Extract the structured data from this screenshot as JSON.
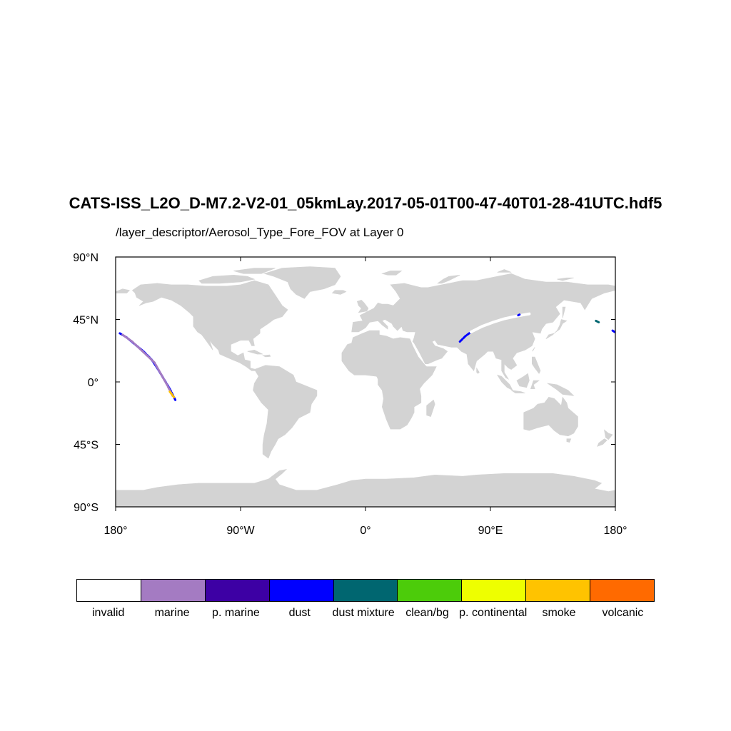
{
  "title": "CATS-ISS_L2O_D-M7.2-V2-01_05kmLay.2017-05-01T00-47-40T01-28-41UTC.hdf5",
  "subtitle": "/layer_descriptor/Aerosol_Type_Fore_FOV at Layer 0",
  "map": {
    "projection": "cylindrical-equidistant",
    "lon_range": [
      -180,
      180
    ],
    "lat_range": [
      -90,
      90
    ],
    "land_color": "#d3d3d3",
    "ocean_color": "#ffffff",
    "lat_ticks": [
      {
        "value": 90,
        "label": "90°N"
      },
      {
        "value": 45,
        "label": "45°N"
      },
      {
        "value": 0,
        "label": "0°"
      },
      {
        "value": -45,
        "label": "45°S"
      },
      {
        "value": -90,
        "label": "90°S"
      }
    ],
    "lon_ticks": [
      {
        "value": -180,
        "label": "180°"
      },
      {
        "value": -90,
        "label": "90°W"
      },
      {
        "value": 0,
        "label": "0°"
      },
      {
        "value": 90,
        "label": "90°E"
      },
      {
        "value": 180,
        "label": "180°"
      }
    ]
  },
  "legend": {
    "categories": [
      {
        "label": "invalid",
        "color": "#ffffff"
      },
      {
        "label": "marine",
        "color": "#a47bc2"
      },
      {
        "label": "p. marine",
        "color": "#3d00a4"
      },
      {
        "label": "dust",
        "color": "#0000ff"
      },
      {
        "label": "dust mixture",
        "color": "#006670"
      },
      {
        "label": "clean/bg",
        "color": "#4ccc0a"
      },
      {
        "label": "p. continental",
        "color": "#eeff00"
      },
      {
        "label": "smoke",
        "color": "#ffc300"
      },
      {
        "label": "volcanic",
        "color": "#ff6a00"
      }
    ]
  },
  "tracks": [
    {
      "category": "dust",
      "points": [
        [
          -177,
          35
        ],
        [
          -172,
          32
        ],
        [
          -166,
          27
        ],
        [
          -160,
          22
        ],
        [
          -154,
          16
        ],
        [
          -150,
          10
        ],
        [
          -147,
          5
        ],
        [
          -144,
          0
        ],
        [
          -141,
          -5
        ],
        [
          -139,
          -9
        ],
        [
          -137,
          -13
        ]
      ]
    },
    {
      "category": "marine",
      "points": [
        [
          -175,
          34
        ],
        [
          -168,
          29
        ],
        [
          -152,
          14
        ],
        [
          -143,
          -2
        ],
        [
          -139,
          -10
        ]
      ]
    },
    {
      "category": "smoke",
      "points": [
        [
          -141,
          -7
        ],
        [
          -138,
          -11
        ]
      ]
    },
    {
      "category": "dust",
      "points": [
        [
          68,
          29
        ],
        [
          70,
          31
        ],
        [
          72,
          33
        ],
        [
          74,
          34.5
        ],
        [
          76,
          36
        ]
      ]
    },
    {
      "category": "invalid",
      "points": [
        [
          76,
          36
        ],
        [
          84,
          40
        ],
        [
          92,
          43
        ],
        [
          100,
          45.5
        ],
        [
          107,
          47
        ],
        [
          112,
          48
        ],
        [
          118,
          49
        ]
      ]
    },
    {
      "category": "dust mixture",
      "points": [
        [
          166,
          44
        ],
        [
          168,
          43
        ]
      ]
    },
    {
      "category": "dust",
      "points": [
        [
          110,
          48
        ],
        [
          111,
          48.5
        ]
      ]
    },
    {
      "category": "dust",
      "points": [
        [
          178,
          37
        ],
        [
          179.5,
          36
        ]
      ]
    }
  ]
}
